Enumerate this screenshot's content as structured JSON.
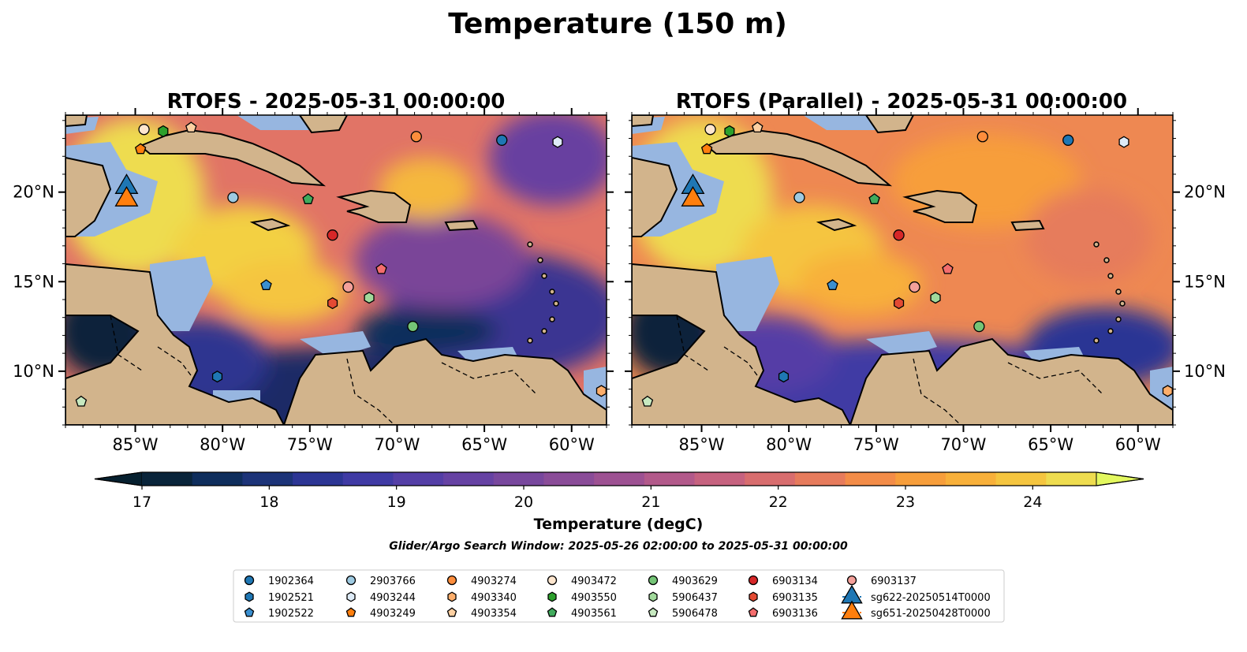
{
  "figure": {
    "title": "Temperature (150 m)",
    "search_window": "Glider/Argo Search Window: 2025-05-26 02:00:00 to 2025-05-31 00:00:00"
  },
  "panels": [
    {
      "title": "RTOFS - 2025-05-31 00:00:00",
      "variant": "rtofs"
    },
    {
      "title": "RTOFS (Parallel) - 2025-05-31 00:00:00",
      "variant": "parallel"
    }
  ],
  "map_extent": {
    "lon": [
      -89,
      -58
    ],
    "lat": [
      7,
      24.3
    ]
  },
  "lon_ticks": [
    {
      "value": -85,
      "label": "85°W"
    },
    {
      "value": -80,
      "label": "80°W"
    },
    {
      "value": -75,
      "label": "75°W"
    },
    {
      "value": -70,
      "label": "70°W"
    },
    {
      "value": -65,
      "label": "65°W"
    },
    {
      "value": -60,
      "label": "60°W"
    }
  ],
  "lat_ticks": [
    {
      "value": 20,
      "label": "20°N"
    },
    {
      "value": 15,
      "label": "15°N"
    },
    {
      "value": 10,
      "label": "10°N"
    }
  ],
  "colorbar": {
    "label": "Temperature (degC)",
    "min": 17,
    "max": 24.5,
    "step": 0.5,
    "extend": "both",
    "ticks": [
      {
        "value": 17,
        "label": "17"
      },
      {
        "value": 18,
        "label": "18"
      },
      {
        "value": 19,
        "label": "19"
      },
      {
        "value": 20,
        "label": "20"
      },
      {
        "value": 21,
        "label": "21"
      },
      {
        "value": 22,
        "label": "22"
      },
      {
        "value": 23,
        "label": "23"
      },
      {
        "value": 24,
        "label": "24"
      }
    ],
    "colors": [
      "#09243a",
      "#0e2d5c",
      "#1c3378",
      "#2c3594",
      "#3f3aa4",
      "#543ea6",
      "#6642a3",
      "#78479d",
      "#8a4c98",
      "#9d5192",
      "#b2598a",
      "#c6627f",
      "#d86d6e",
      "#e67b5c",
      "#f38c48",
      "#f79e3b",
      "#f8b03a",
      "#f5c53f",
      "#eedc4f"
    ],
    "extend_low": "#06202f",
    "extend_high": "#e3f85f"
  },
  "land_color": "#d2b48c",
  "shelf_color": "#97b6e0",
  "floats": [
    {
      "id": "1902364",
      "marker": "circle",
      "color": "#1f77b4",
      "lon": -64,
      "lat": 22.9
    },
    {
      "id": "1902521",
      "marker": "hexagon",
      "color": "#1f77b4",
      "lon": -80.3,
      "lat": 9.7
    },
    {
      "id": "1902522",
      "marker": "pentagon",
      "color": "#3a8fd0",
      "lon": -77.5,
      "lat": 14.8
    },
    {
      "id": "2903766",
      "marker": "circle",
      "color": "#9ecae1",
      "lon": -79.4,
      "lat": 19.7
    },
    {
      "id": "4903244",
      "marker": "hexagon",
      "color": "#deebf7",
      "lon": -60.8,
      "lat": 22.8
    },
    {
      "id": "4903249",
      "marker": "pentagon",
      "color": "#ff7f0e",
      "lon": -84.7,
      "lat": 22.4
    },
    {
      "id": "4903274",
      "marker": "circle",
      "color": "#fd8d3c",
      "lon": -68.9,
      "lat": 23.1
    },
    {
      "id": "4903340",
      "marker": "hexagon",
      "color": "#fdae6b",
      "lon": -58.3,
      "lat": 8.9
    },
    {
      "id": "4903354",
      "marker": "pentagon",
      "color": "#fdd0a2",
      "lon": -81.8,
      "lat": 23.6
    },
    {
      "id": "4903472",
      "marker": "circle",
      "color": "#fee6ce",
      "lon": -84.5,
      "lat": 23.5
    },
    {
      "id": "4903550",
      "marker": "hexagon",
      "color": "#2ca02c",
      "lon": -83.4,
      "lat": 23.4
    },
    {
      "id": "4903561",
      "marker": "pentagon",
      "color": "#41ab5d",
      "lon": -75.1,
      "lat": 19.6
    },
    {
      "id": "4903629",
      "marker": "circle",
      "color": "#74c476",
      "lon": -69.1,
      "lat": 12.5
    },
    {
      "id": "5906437",
      "marker": "hexagon",
      "color": "#a1d99b",
      "lon": -71.6,
      "lat": 14.1
    },
    {
      "id": "5906478",
      "marker": "pentagon",
      "color": "#c7e9c0",
      "lon": -88.1,
      "lat": 8.3
    },
    {
      "id": "6903134",
      "marker": "circle",
      "color": "#d62728",
      "lon": -73.7,
      "lat": 17.6
    },
    {
      "id": "6903135",
      "marker": "hexagon",
      "color": "#e34a33",
      "lon": -73.7,
      "lat": 13.8
    },
    {
      "id": "6903136",
      "marker": "pentagon",
      "color": "#f46d6d",
      "lon": -70.9,
      "lat": 15.7
    },
    {
      "id": "6903137",
      "marker": "circle",
      "color": "#f4a09a",
      "lon": -72.8,
      "lat": 14.7
    },
    {
      "id": "sg622-20250514T0000",
      "marker": "triangle",
      "color": "#1f77b4",
      "lon": -85.5,
      "lat": 20.4
    },
    {
      "id": "sg651-20250428T0000",
      "marker": "triangle",
      "color": "#ff7f0e",
      "lon": -85.5,
      "lat": 19.7
    }
  ]
}
